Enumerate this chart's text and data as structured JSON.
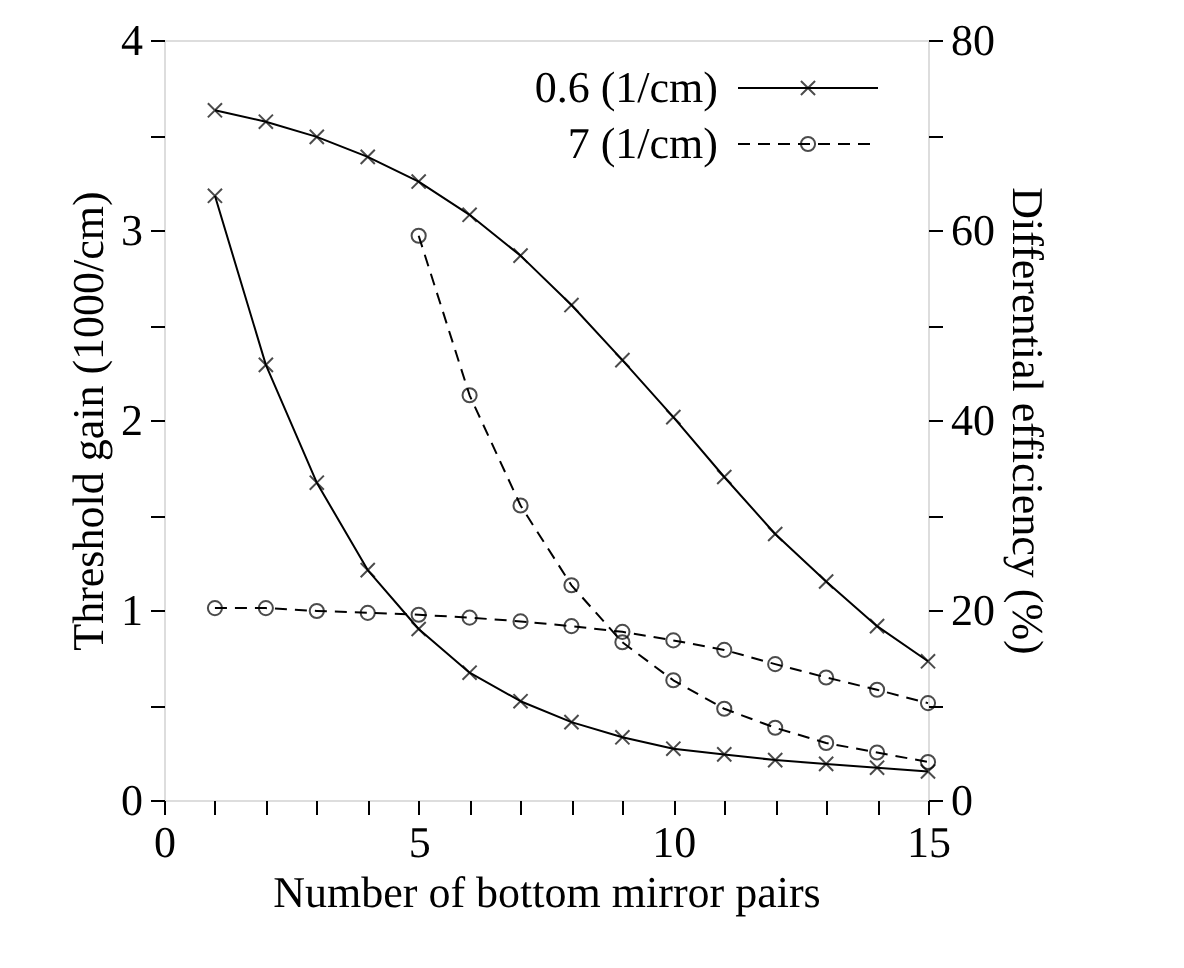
{
  "chart_data": {
    "type": "line",
    "xlabel": "Number of bottom mirror pairs",
    "ylabel": "Threshold gain (1000/cm)",
    "y2label": "Differential efficiency (%)",
    "x": [
      1,
      2,
      3,
      4,
      5,
      6,
      7,
      8,
      9,
      10,
      11,
      12,
      13,
      14,
      15
    ],
    "xlim": [
      0,
      15
    ],
    "xticks": [
      0,
      {
        "value": 1,
        "label": null
      },
      {
        "value": 2,
        "label": null
      },
      {
        "value": 3,
        "label": null
      },
      {
        "value": 4,
        "label": null
      },
      5,
      {
        "value": 6,
        "label": null
      },
      {
        "value": 7,
        "label": null
      },
      {
        "value": 8,
        "label": null
      },
      {
        "value": 9,
        "label": null
      },
      10,
      {
        "value": 11,
        "label": null
      },
      {
        "value": 12,
        "label": null
      },
      {
        "value": 13,
        "label": null
      },
      {
        "value": 14,
        "label": null
      },
      15
    ],
    "ylim": [
      0,
      4
    ],
    "yticks": [
      0,
      {
        "value": 0.5,
        "label": null
      },
      1,
      {
        "value": 1.5,
        "label": null
      },
      2,
      {
        "value": 2.5,
        "label": null
      },
      3,
      {
        "value": 3.5,
        "label": null
      },
      4
    ],
    "y2lim": [
      0,
      80
    ],
    "y2ticks": [
      0,
      {
        "value": 10,
        "label": null
      },
      20,
      {
        "value": 30,
        "label": null
      },
      40,
      {
        "value": 50,
        "label": null
      },
      60,
      {
        "value": 70,
        "label": null
      },
      80
    ],
    "legend": "top right",
    "grid": false,
    "series": [
      {
        "name": "0.6 (1/cm)",
        "color": "#000000",
        "marker": "cross",
        "line_style": "solid",
        "values": [
          3.18,
          2.29,
          1.67,
          1.21,
          0.9,
          0.67,
          0.52,
          0.41,
          0.33,
          0.27,
          0.24,
          0.21,
          0.19,
          0.17,
          0.15
        ]
      },
      {
        "name": "7 (1/cm)",
        "color": "#000000",
        "marker": "circle",
        "line_style": "dashed",
        "x": [
          5,
          6,
          7,
          8,
          9,
          10,
          11,
          12,
          13,
          14,
          15
        ],
        "values": [
          2.97,
          2.13,
          1.55,
          1.13,
          0.83,
          0.63,
          0.48,
          0.38,
          0.3,
          0.25,
          0.2
        ]
      },
      {
        "color": "#000000",
        "marker": "cross",
        "line_style": "solid",
        "axis": "y2",
        "values": [
          72.6,
          71.4,
          69.8,
          67.7,
          65.1,
          61.6,
          57.3,
          52.1,
          46.3,
          40.3,
          34.0,
          28.0,
          23.0,
          18.3,
          14.6
        ]
      },
      {
        "color": "#000000",
        "marker": "circle",
        "line_style": "dashed",
        "axis": "y2",
        "values": [
          20.2,
          20.2,
          19.9,
          19.7,
          19.5,
          19.2,
          18.8,
          18.3,
          17.7,
          16.8,
          15.8,
          14.3,
          12.9,
          11.6,
          10.2
        ]
      }
    ]
  }
}
